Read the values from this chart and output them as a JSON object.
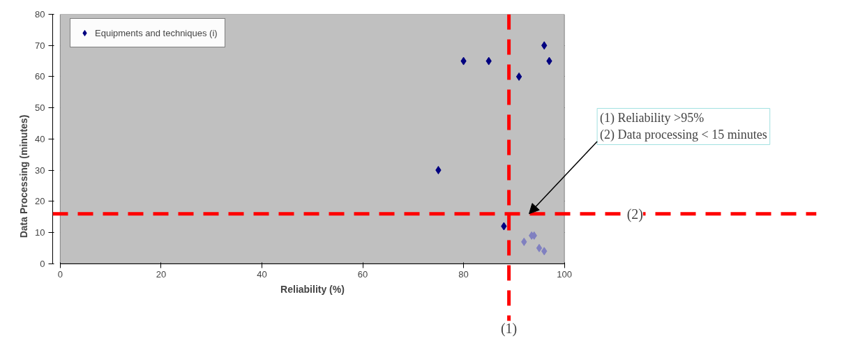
{
  "chart_data": {
    "type": "scatter",
    "xlabel": "Reliability (%)",
    "ylabel": "Data Processing (minutes)",
    "series": [
      {
        "name": "Equipments and techniques (i)",
        "color": "#000080",
        "x": [
          75,
          80,
          85,
          91,
          96,
          97,
          88
        ],
        "values": [
          30,
          65,
          65,
          60,
          70,
          65,
          12
        ]
      },
      {
        "color": "#8080c0",
        "x": [
          92,
          93.5,
          94,
          95,
          96
        ],
        "values": [
          7,
          9,
          9,
          5,
          4
        ]
      }
    ],
    "xlim": [
      0,
      100
    ],
    "ylim": [
      0,
      80
    ],
    "xticks": [
      0,
      20,
      40,
      60,
      80,
      100
    ],
    "yticks": [
      0,
      10,
      20,
      30,
      40,
      50,
      60,
      70,
      80
    ],
    "grid": "y",
    "legend": "top left",
    "marker": "diamond",
    "ref_lines": [
      {
        "axis": "x",
        "value": 89,
        "color": "#ff0000",
        "line_style": "dashed"
      },
      {
        "axis": "y",
        "value": 16,
        "color": "#ff0000",
        "line_style": "dashed"
      }
    ],
    "annotations": [
      {
        "text": "(1) Reliability >95%\n(2) Data processing < 15 minutes",
        "x": 93,
        "y": 16
      },
      {
        "text": "(1)",
        "x": 89
      },
      {
        "text": "(2)",
        "y": 16
      }
    ]
  }
}
